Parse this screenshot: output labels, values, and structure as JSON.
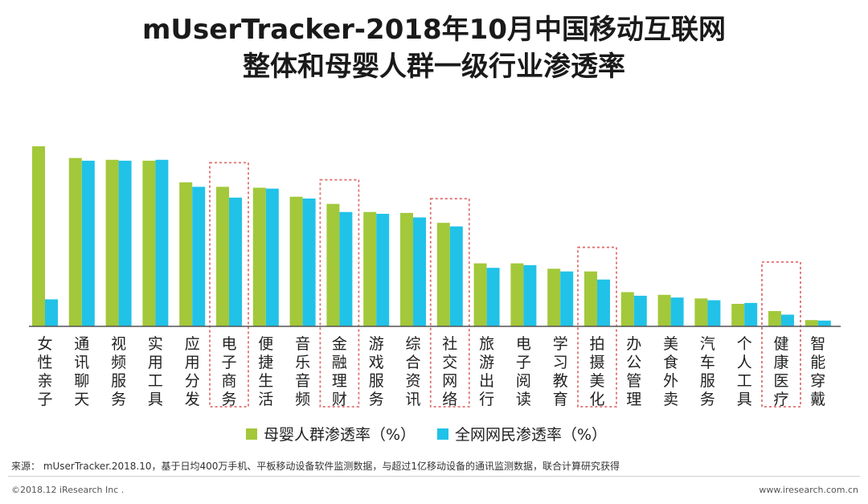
{
  "title_line1": "mUserTracker-2018年10月中国移动互联网",
  "title_line2": "整体和母婴人群一级行业渗透率",
  "colors": {
    "series1": "#a3c83a",
    "series2": "#21c2e8",
    "highlight_box": "#e07070",
    "axis": "#555555"
  },
  "chart_data": {
    "type": "bar",
    "title": "mUserTracker-2018年10月中国移动互联网整体和母婴人群一级行业渗透率",
    "xlabel": "",
    "ylabel": "",
    "ylim": [
      0,
      100
    ],
    "grid": false,
    "legend_position": "bottom",
    "categories": [
      "女性亲子",
      "通讯聊天",
      "视频服务",
      "实用工具",
      "应用分发",
      "电子商务",
      "便捷生活",
      "音乐音频",
      "金融理财",
      "游戏服务",
      "综合资讯",
      "社交网络",
      "旅游出行",
      "电子阅读",
      "学习教育",
      "拍摄美化",
      "办公管理",
      "美食外卖",
      "汽车服务",
      "个人工具",
      "健康医疗",
      "智能穿戴"
    ],
    "highlighted_categories": [
      "电子商务",
      "金融理财",
      "社交网络",
      "拍摄美化",
      "健康医疗"
    ],
    "series": [
      {
        "name": "母婴人群渗透率（%）",
        "values": [
          100,
          93.5,
          92.5,
          92,
          80,
          77.5,
          77,
          72,
          68,
          63.5,
          63,
          57.5,
          35,
          35,
          32,
          30.5,
          19,
          17.5,
          15.5,
          12.5,
          8.5,
          3.5
        ]
      },
      {
        "name": "全网网民渗透率（%）",
        "values": [
          15,
          92,
          92,
          92.5,
          77.5,
          71.5,
          76.5,
          71,
          63.5,
          62.5,
          60.5,
          55.5,
          32.5,
          34,
          30.5,
          26,
          17,
          16,
          14.5,
          13,
          6.5,
          3.2
        ]
      }
    ]
  },
  "source": "来源： mUserTracker.2018.10，基于日均400万手机、平板移动设备软件监测数据，与超过1亿移动设备的通讯监测数据，联合计算研究获得",
  "copyright": "©2018.12 iResearch Inc .",
  "website": "www.iresearch.com.cn"
}
